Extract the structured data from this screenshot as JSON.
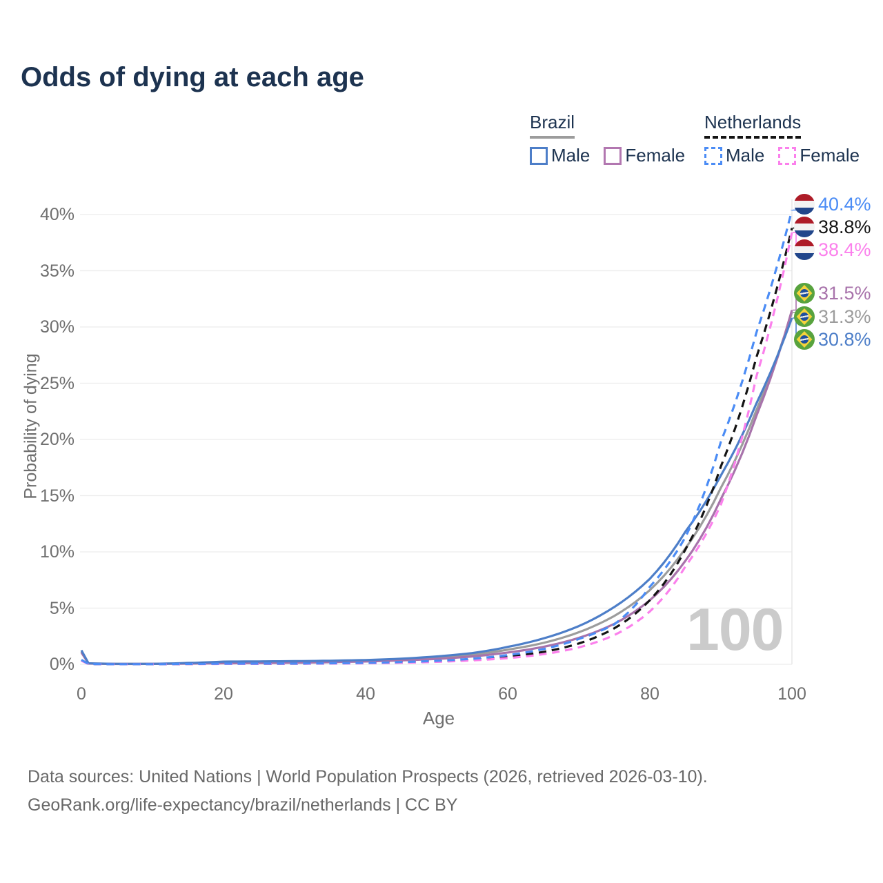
{
  "title": "Odds of dying at each age",
  "legend": {
    "groups": [
      {
        "label": "Brazil",
        "line_style": "solid",
        "underline_color": "#9c9c9c",
        "items": [
          {
            "label": "Male",
            "color": "#4d7ec8"
          },
          {
            "label": "Female",
            "color": "#b277b0"
          }
        ]
      },
      {
        "label": "Netherlands",
        "line_style": "dashed",
        "underline_color": "#141414",
        "items": [
          {
            "label": "Male",
            "color": "#4b8cf5"
          },
          {
            "label": "Female",
            "color": "#fb80ec"
          }
        ]
      }
    ]
  },
  "axes": {
    "x": {
      "label": "Age",
      "ticks": [
        "0",
        "20",
        "40",
        "60",
        "80",
        "100"
      ]
    },
    "y": {
      "label": "Probability of dying",
      "ticks": [
        "0%",
        "5%",
        "10%",
        "15%",
        "20%",
        "25%",
        "30%",
        "35%",
        "40%"
      ]
    }
  },
  "age_indicator": "100",
  "footer": {
    "line1": "Data sources: United Nations | World Population Prospects (2026, retrieved 2026-03-10).",
    "line2": "GeoRank.org/life-expectancy/brazil/netherlands | CC BY"
  },
  "chart_data": {
    "type": "line",
    "title": "Odds of dying at each age",
    "xlabel": "Age",
    "ylabel": "Probability of dying",
    "xlim": [
      0,
      100
    ],
    "ylim_pct": [
      0,
      40
    ],
    "x_ticks": [
      0,
      20,
      40,
      60,
      80,
      100
    ],
    "y_ticks_pct": [
      0,
      5,
      10,
      15,
      20,
      25,
      30,
      35,
      40
    ],
    "grid": "horizontal",
    "legend_position": "top-right",
    "ages": [
      0,
      1,
      5,
      10,
      15,
      20,
      25,
      30,
      35,
      40,
      45,
      50,
      55,
      60,
      65,
      70,
      75,
      80,
      85,
      90,
      95,
      100
    ],
    "series": [
      {
        "name": "Brazil Both sexes",
        "country": "brazil",
        "sex": "total",
        "line": "solid",
        "color": "#9c9c9c",
        "end_value_pct": 31.3,
        "end_label": "31.3%",
        "label_color": "#9c9c9c",
        "values_pct": [
          1.15,
          0.08,
          0.035,
          0.04,
          0.09,
          0.16,
          0.18,
          0.21,
          0.25,
          0.31,
          0.42,
          0.58,
          0.85,
          1.3,
          1.9,
          2.85,
          4.3,
          6.6,
          10.3,
          15.7,
          22.6,
          31.3
        ]
      },
      {
        "name": "Brazil Female",
        "country": "brazil",
        "sex": "female",
        "line": "solid",
        "color": "#a873ab",
        "end_value_pct": 31.5,
        "end_label": "31.5%",
        "label_color": "#a873ab",
        "values_pct": [
          1.05,
          0.07,
          0.03,
          0.035,
          0.06,
          0.09,
          0.11,
          0.14,
          0.19,
          0.25,
          0.35,
          0.48,
          0.7,
          1.05,
          1.55,
          2.35,
          3.6,
          5.7,
          9.2,
          14.7,
          22.1,
          31.5
        ]
      },
      {
        "name": "Brazil Male",
        "country": "brazil",
        "sex": "male",
        "line": "solid",
        "color": "#4d7ec8",
        "end_value_pct": 30.8,
        "end_label": "30.8%",
        "label_color": "#4d7ec8",
        "values_pct": [
          1.25,
          0.09,
          0.04,
          0.045,
          0.12,
          0.24,
          0.26,
          0.28,
          0.32,
          0.38,
          0.5,
          0.7,
          1.0,
          1.55,
          2.3,
          3.4,
          5.1,
          7.6,
          11.8,
          16.8,
          23.2,
          30.8
        ]
      },
      {
        "name": "Netherlands Both sexes",
        "country": "netherlands",
        "sex": "total",
        "line": "dashed",
        "color": "#141414",
        "end_value_pct": 38.8,
        "end_label": "38.8%",
        "label_color": "#141414",
        "values_pct": [
          0.35,
          0.03,
          0.01,
          0.011,
          0.03,
          0.05,
          0.055,
          0.06,
          0.08,
          0.11,
          0.17,
          0.26,
          0.42,
          0.68,
          1.1,
          1.85,
          3.2,
          5.7,
          10.2,
          17.6,
          27.3,
          38.8
        ]
      },
      {
        "name": "Netherlands Female",
        "country": "netherlands",
        "sex": "female",
        "line": "dashed",
        "color": "#fb80ec",
        "end_value_pct": 38.4,
        "end_label": "38.4%",
        "label_color": "#fb80ec",
        "values_pct": [
          0.32,
          0.025,
          0.009,
          0.01,
          0.02,
          0.035,
          0.04,
          0.05,
          0.065,
          0.09,
          0.14,
          0.22,
          0.35,
          0.55,
          0.9,
          1.5,
          2.6,
          4.7,
          8.7,
          14.2,
          25.6,
          38.4
        ]
      },
      {
        "name": "Netherlands Male",
        "country": "netherlands",
        "sex": "male",
        "line": "dashed",
        "color": "#4b8cf5",
        "end_value_pct": 40.4,
        "end_label": "40.4%",
        "label_color": "#4b8cf5",
        "values_pct": [
          0.4,
          0.03,
          0.01,
          0.012,
          0.035,
          0.06,
          0.065,
          0.07,
          0.09,
          0.13,
          0.2,
          0.31,
          0.5,
          0.82,
          1.35,
          2.25,
          3.55,
          6.9,
          11.3,
          19.8,
          29.5,
          40.4
        ]
      }
    ]
  }
}
